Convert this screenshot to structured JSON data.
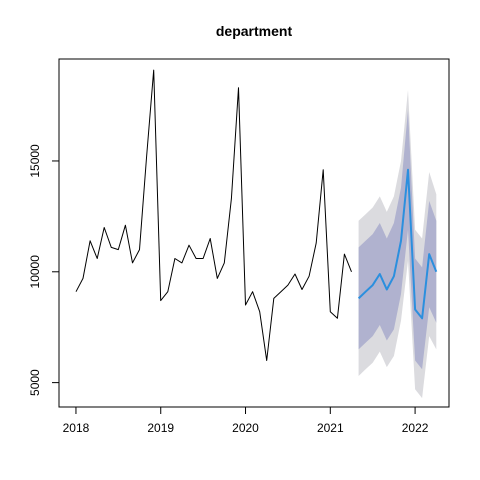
{
  "chart_data": {
    "type": "line",
    "title": "department",
    "xlabel": "",
    "ylabel": "",
    "xlim": [
      2017.8,
      2022.4
    ],
    "ylim": [
      3900,
      19600
    ],
    "x_ticks": [
      2018,
      2019,
      2020,
      2021,
      2022
    ],
    "x_tick_labels": [
      "2018",
      "2019",
      "2020",
      "2021",
      "2022"
    ],
    "y_ticks": [
      5000,
      10000,
      15000
    ],
    "y_tick_labels": [
      "5000",
      "10000",
      "15000"
    ],
    "grid": false,
    "series": [
      {
        "role": "observed",
        "color": "#000000",
        "x": [
          2018.0,
          2018.0833,
          2018.1667,
          2018.25,
          2018.3333,
          2018.4167,
          2018.5,
          2018.5833,
          2018.6667,
          2018.75,
          2018.8333,
          2018.9167,
          2019.0,
          2019.0833,
          2019.1667,
          2019.25,
          2019.3333,
          2019.4167,
          2019.5,
          2019.5833,
          2019.6667,
          2019.75,
          2019.8333,
          2019.9167,
          2020.0,
          2020.0833,
          2020.1667,
          2020.25,
          2020.3333,
          2020.4167,
          2020.5,
          2020.5833,
          2020.6667,
          2020.75,
          2020.8333,
          2020.9167,
          2021.0,
          2021.0833,
          2021.1667,
          2021.25
        ],
        "y": [
          9100,
          9700,
          11400,
          10600,
          12000,
          11100,
          11000,
          12100,
          10400,
          11000,
          15200,
          19100,
          8700,
          9100,
          10600,
          10400,
          11200,
          10600,
          10600,
          11500,
          9700,
          10400,
          13300,
          18300,
          8500,
          9100,
          8200,
          6000,
          8800,
          9100,
          9400,
          9900,
          9200,
          9800,
          11300,
          14600,
          8200,
          7900,
          10800,
          10000
        ]
      },
      {
        "role": "forecast",
        "color": "#2b8fde",
        "x": [
          2021.3333,
          2021.4167,
          2021.5,
          2021.5833,
          2021.6667,
          2021.75,
          2021.8333,
          2021.9167,
          2022.0,
          2022.0833,
          2022.1667,
          2022.25
        ],
        "y": [
          8800,
          9100,
          9400,
          9900,
          9200,
          9800,
          11400,
          14600,
          8300,
          7900,
          10800,
          10000
        ],
        "lower_80": [
          6500,
          6800,
          7100,
          7600,
          6900,
          7400,
          9000,
          11900,
          6000,
          5600,
          8400,
          7700
        ],
        "upper_80": [
          11100,
          11400,
          11700,
          12200,
          11500,
          12200,
          13800,
          17300,
          10600,
          10200,
          13200,
          12300
        ],
        "lower_95": [
          5300,
          5600,
          5900,
          6400,
          5700,
          6200,
          7800,
          10500,
          4700,
          4300,
          7100,
          6500
        ],
        "upper_95": [
          12300,
          12600,
          12900,
          13400,
          12700,
          13400,
          15000,
          18200,
          11900,
          11500,
          14500,
          13500
        ]
      }
    ],
    "band_colors": {
      "ci95": "#dbdbdf",
      "ci80": "#b0b2cf"
    }
  }
}
